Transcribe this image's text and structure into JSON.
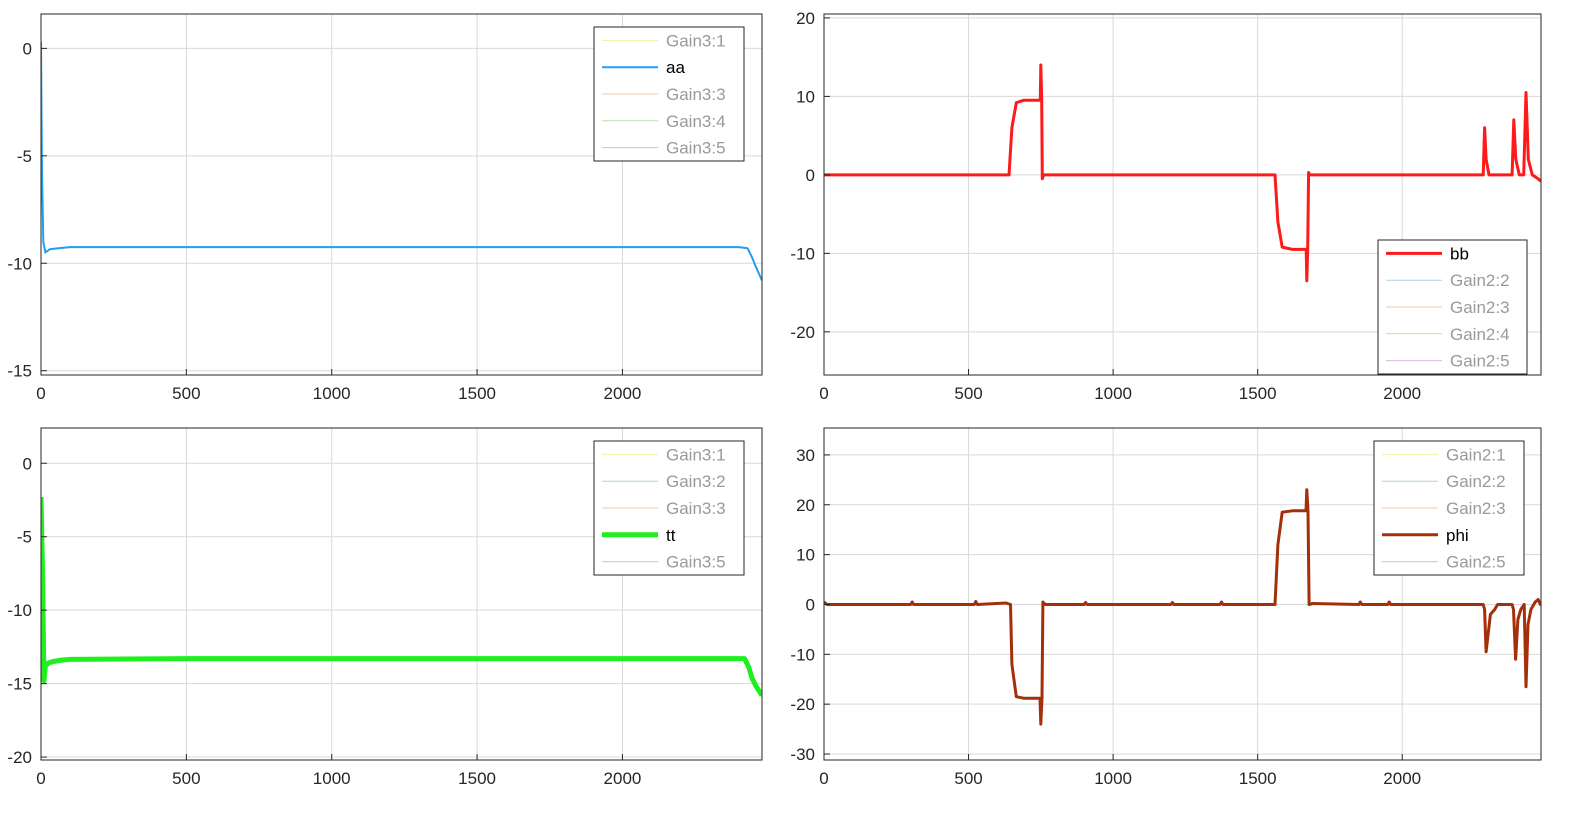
{
  "chart_data": [
    {
      "type": "line",
      "title": "",
      "xlabel": "",
      "ylabel": "",
      "xlim": [
        0,
        2480
      ],
      "ylim": [
        -15.2,
        1.6
      ],
      "xticks": [
        0,
        500,
        1000,
        1500,
        2000
      ],
      "yticks": [
        0,
        -5,
        -10,
        -15
      ],
      "grid": true,
      "legend_position": "top-right",
      "legend": [
        {
          "name": "Gain3:1",
          "color": "#f3f3a6",
          "active": false
        },
        {
          "name": "aa",
          "color": "#1e9ff0",
          "active": true
        },
        {
          "name": "Gain3:3",
          "color": "#f4c5a8",
          "active": false
        },
        {
          "name": "Gain3:4",
          "color": "#b6e6a4",
          "active": false
        },
        {
          "name": "Gain3:5",
          "color": "#e3b5ea",
          "active": false
        }
      ],
      "series": [
        {
          "name": "aa",
          "color": "#1e9ff0",
          "width": 2,
          "x": [
            0,
            3,
            8,
            15,
            30,
            60,
            100,
            200,
            500,
            1000,
            1500,
            2000,
            2400,
            2430,
            2445,
            2460,
            2480
          ],
          "y": [
            0.3,
            -5.5,
            -9.0,
            -9.5,
            -9.35,
            -9.3,
            -9.25,
            -9.25,
            -9.25,
            -9.25,
            -9.25,
            -9.25,
            -9.25,
            -9.3,
            -9.7,
            -10.2,
            -10.8
          ]
        }
      ]
    },
    {
      "type": "line",
      "title": "",
      "xlabel": "",
      "ylabel": "",
      "xlim": [
        0,
        2480
      ],
      "ylim": [
        -25.5,
        20.5
      ],
      "xticks": [
        0,
        500,
        1000,
        1500,
        2000
      ],
      "yticks": [
        20,
        10,
        0,
        -10,
        -20
      ],
      "grid": true,
      "legend_position": "bottom-right",
      "legend": [
        {
          "name": "bb",
          "color": "#ff1a1a",
          "active": true
        },
        {
          "name": "Gain2:2",
          "color": "#a8d4f0",
          "active": false
        },
        {
          "name": "Gain2:3",
          "color": "#f4c5a8",
          "active": false
        },
        {
          "name": "Gain2:4",
          "color": "#b6e6a4",
          "active": false
        },
        {
          "name": "Gain2:5",
          "color": "#e3b5ea",
          "active": false
        }
      ],
      "series": [
        {
          "name": "bb",
          "color": "#ff1a1a",
          "width": 3,
          "x": [
            0,
            620,
            640,
            650,
            665,
            690,
            740,
            748,
            750,
            753,
            755,
            760,
            1550,
            1560,
            1570,
            1585,
            1620,
            1660,
            1668,
            1670,
            1673,
            1676,
            1680,
            2280,
            2285,
            2290,
            2300,
            2380,
            2386,
            2393,
            2405,
            2420,
            2428,
            2436,
            2450,
            2470,
            2480
          ],
          "y": [
            0,
            0,
            0,
            6,
            9.2,
            9.5,
            9.5,
            9.5,
            14,
            9.5,
            -0.5,
            0,
            0,
            0,
            -6,
            -9.2,
            -9.5,
            -9.5,
            -9.5,
            -13.5,
            -9.5,
            0.3,
            0,
            0,
            6,
            2,
            0,
            0,
            7,
            2,
            0,
            0,
            10.5,
            2,
            0,
            -0.5,
            -0.8
          ]
        }
      ]
    },
    {
      "type": "line",
      "title": "",
      "xlabel": "",
      "ylabel": "",
      "xlim": [
        0,
        2480
      ],
      "ylim": [
        -20.2,
        2.4
      ],
      "xticks": [
        0,
        500,
        1000,
        1500,
        2000
      ],
      "yticks": [
        0,
        -5,
        -10,
        -15,
        -20
      ],
      "grid": true,
      "legend_position": "top-right",
      "legend": [
        {
          "name": "Gain3:1",
          "color": "#f3f3a6",
          "active": false
        },
        {
          "name": "Gain3:2",
          "color": "#a8d4f0",
          "active": false
        },
        {
          "name": "Gain3:3",
          "color": "#f4c5a8",
          "active": false
        },
        {
          "name": "tt",
          "color": "#1fef1f",
          "active": true
        },
        {
          "name": "Gain3:5",
          "color": "#e3b5ea",
          "active": false
        }
      ],
      "series": [
        {
          "name": "tt",
          "color": "#1fef1f",
          "width": 5,
          "x": [
            0,
            6,
            10,
            15,
            25,
            40,
            70,
            100,
            500,
            1000,
            1500,
            2000,
            2420,
            2435,
            2445,
            2460,
            2480
          ],
          "y": [
            -2.3,
            -8.0,
            -14.8,
            -13.8,
            -13.6,
            -13.5,
            -13.4,
            -13.35,
            -13.3,
            -13.3,
            -13.3,
            -13.3,
            -13.3,
            -13.9,
            -14.6,
            -15.2,
            -15.8
          ]
        }
      ]
    },
    {
      "type": "line",
      "title": "",
      "xlabel": "",
      "ylabel": "",
      "xlim": [
        0,
        2480
      ],
      "ylim": [
        -31.2,
        35.4
      ],
      "xticks": [
        0,
        500,
        1000,
        1500,
        2000
      ],
      "yticks": [
        30,
        20,
        10,
        0,
        -10,
        -20,
        -30
      ],
      "grid": true,
      "legend_position": "top-right",
      "legend": [
        {
          "name": "Gain2:1",
          "color": "#f3f3a6",
          "active": false
        },
        {
          "name": "Gain2:2",
          "color": "#a8d4f0",
          "active": false
        },
        {
          "name": "Gain2:3",
          "color": "#f4c5a8",
          "active": false
        },
        {
          "name": "phi",
          "color": "#a3300a",
          "active": true
        },
        {
          "name": "Gain2:5",
          "color": "#e3b5ea",
          "active": false
        }
      ],
      "series": [
        {
          "name": "phi",
          "color": "#a3300a",
          "width": 3,
          "x": [
            0,
            10,
            15,
            300,
            305,
            310,
            520,
            525,
            530,
            630,
            645,
            650,
            665,
            690,
            740,
            747,
            750,
            754,
            757,
            765,
            900,
            905,
            910,
            1200,
            1205,
            1210,
            1370,
            1375,
            1380,
            1550,
            1560,
            1570,
            1585,
            1620,
            1660,
            1667,
            1670,
            1674,
            1678,
            1690,
            1850,
            1855,
            1860,
            1950,
            1955,
            1960,
            2280,
            2285,
            2290,
            2305,
            2320,
            2330,
            2380,
            2385,
            2392,
            2400,
            2410,
            2422,
            2428,
            2435,
            2445,
            2460,
            2470,
            2478,
            2480
          ],
          "y": [
            0.5,
            0,
            0,
            0,
            0.5,
            0,
            0,
            0.6,
            0,
            0.3,
            0,
            -12,
            -18.5,
            -18.8,
            -18.8,
            -18.8,
            -24,
            -18.8,
            0.5,
            0,
            0,
            0.4,
            0,
            0,
            0.4,
            0,
            0,
            0.5,
            0,
            0,
            0,
            12,
            18.5,
            18.8,
            18.8,
            18.8,
            23,
            18.8,
            0,
            0.2,
            0,
            0.5,
            0,
            0,
            0.5,
            0,
            0,
            -1,
            -9.5,
            -2,
            -1,
            0,
            0,
            -1,
            -11,
            -3,
            -1,
            0,
            -16.5,
            -4,
            -1,
            0.5,
            1,
            0,
            0.5
          ]
        }
      ]
    }
  ]
}
